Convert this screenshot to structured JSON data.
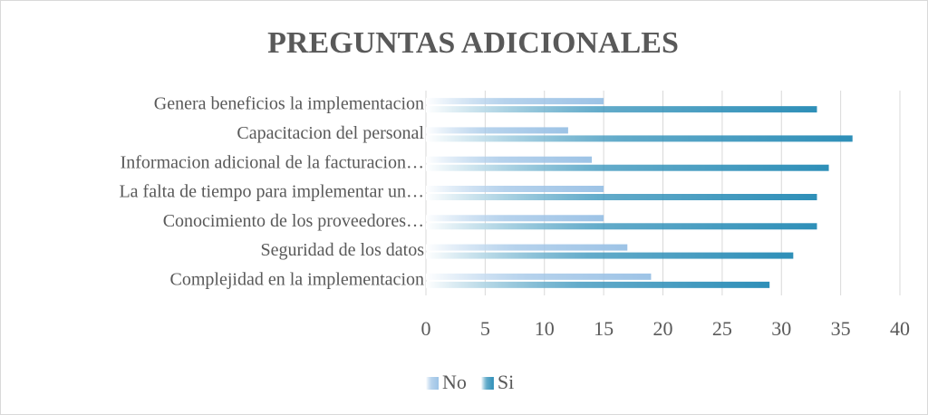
{
  "chart_data": {
    "type": "bar",
    "orientation": "horizontal",
    "title": "PREGUNTAS ADICIONALES",
    "categories": [
      "Genera beneficios la implementacion",
      "Capacitacion del personal",
      "Informacion adicional de la facturacion…",
      "La falta de tiempo para implementar un…",
      "Conocimiento de los proveedores…",
      "Seguridad de los datos",
      "Complejidad en la implementacion"
    ],
    "series": [
      {
        "name": "No",
        "color": "#9dc3e6",
        "values": [
          15,
          12,
          14,
          15,
          15,
          17,
          19
        ]
      },
      {
        "name": "Si",
        "color": "#2e8fb8",
        "values": [
          33,
          36,
          34,
          33,
          33,
          31,
          29
        ]
      }
    ],
    "xlim": [
      0,
      40
    ],
    "xticks": [
      0,
      5,
      10,
      15,
      20,
      25,
      30,
      35,
      40
    ],
    "grid": true,
    "legend": "bottom"
  }
}
